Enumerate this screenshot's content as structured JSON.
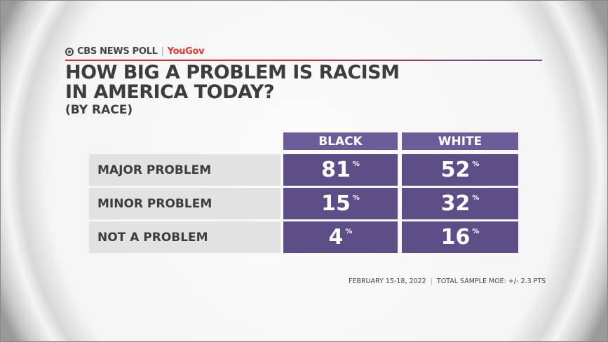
{
  "header": {
    "brand": "CBS NEWS POLL",
    "partner": "YouGov",
    "title_line1": "HOW BIG A PROBLEM IS RACISM",
    "title_line2": "IN AMERICA TODAY?",
    "subtitle": "(BY RACE)"
  },
  "chart_data": {
    "type": "table",
    "columns": [
      "BLACK",
      "WHITE"
    ],
    "rows": [
      {
        "label": "MAJOR PROBLEM",
        "values": [
          81,
          52
        ]
      },
      {
        "label": "MINOR PROBLEM",
        "values": [
          15,
          32
        ]
      },
      {
        "label": "NOT A PROBLEM",
        "values": [
          4,
          16
        ]
      }
    ],
    "unit": "%"
  },
  "footer": {
    "date": "FEBRUARY 15-18, 2022",
    "moe": "TOTAL SAMPLE MOE: +/- 2.3 PTS"
  },
  "colors": {
    "cell": "#5e4e88",
    "header": "#6b5b99",
    "label_bg": "#e2e2e2",
    "brand_red": "#e2342f"
  }
}
